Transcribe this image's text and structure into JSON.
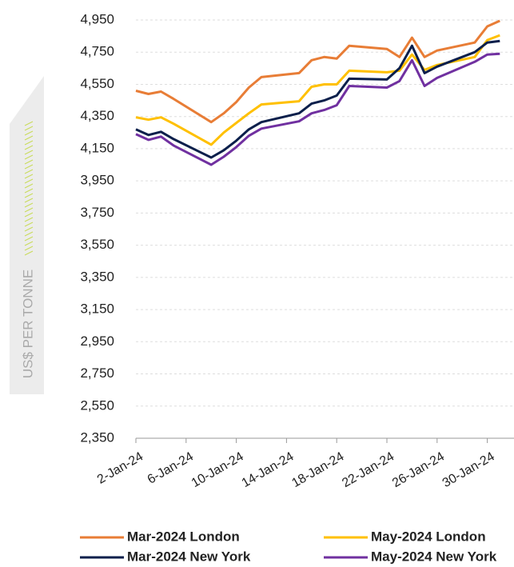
{
  "chart_data": {
    "type": "line",
    "y_label": "US$ PER TONNE",
    "x": [
      "2024-01-02",
      "2024-01-03",
      "2024-01-04",
      "2024-01-05",
      "2024-01-08",
      "2024-01-09",
      "2024-01-10",
      "2024-01-11",
      "2024-01-12",
      "2024-01-15",
      "2024-01-16",
      "2024-01-17",
      "2024-01-18",
      "2024-01-19",
      "2024-01-22",
      "2024-01-23",
      "2024-01-24",
      "2024-01-25",
      "2024-01-26",
      "2024-01-29",
      "2024-01-30",
      "2024-01-31"
    ],
    "series": [
      {
        "name": "Mar-2024 London",
        "color": "#E87D36",
        "values": [
          4510,
          4490,
          4505,
          4460,
          4315,
          4370,
          4440,
          4530,
          4595,
          4620,
          4700,
          4720,
          4710,
          4790,
          4770,
          4720,
          4840,
          4720,
          4760,
          4810,
          4910,
          4945
        ]
      },
      {
        "name": "May-2024 London",
        "color": "#FFC000",
        "values": [
          4345,
          4330,
          4345,
          4305,
          4175,
          4250,
          4310,
          4370,
          4425,
          4445,
          4535,
          4550,
          4550,
          4635,
          4625,
          4635,
          4735,
          4640,
          4670,
          4720,
          4825,
          4855
        ]
      },
      {
        "name": "Mar-2024 New York",
        "color": "#0B1F4B",
        "values": [
          4270,
          4235,
          4255,
          4210,
          4095,
          4140,
          4200,
          4270,
          4315,
          4370,
          4430,
          4450,
          4480,
          4585,
          4580,
          4650,
          4790,
          4620,
          4660,
          4750,
          4810,
          4820
        ]
      },
      {
        "name": "May-2024 New York",
        "color": "#7030A0",
        "values": [
          4240,
          4205,
          4225,
          4170,
          4050,
          4100,
          4160,
          4230,
          4275,
          4320,
          4370,
          4390,
          4420,
          4540,
          4530,
          4570,
          4700,
          4540,
          4590,
          4690,
          4735,
          4740
        ]
      }
    ],
    "xlim": [
      "2024-01-02",
      "2024-02-01"
    ],
    "xticks": [
      {
        "value": "2024-01-02",
        "label": "2-Jan-24"
      },
      {
        "value": "2024-01-06",
        "label": "6-Jan-24"
      },
      {
        "value": "2024-01-10",
        "label": "10-Jan-24"
      },
      {
        "value": "2024-01-14",
        "label": "14-Jan-24"
      },
      {
        "value": "2024-01-18",
        "label": "18-Jan-24"
      },
      {
        "value": "2024-01-22",
        "label": "22-Jan-24"
      },
      {
        "value": "2024-01-26",
        "label": "26-Jan-24"
      },
      {
        "value": "2024-01-30",
        "label": "30-Jan-24"
      }
    ],
    "ylim": [
      2350,
      4950
    ],
    "yticks": [
      {
        "value": 2350,
        "label": "2,350"
      },
      {
        "value": 2550,
        "label": "2,550"
      },
      {
        "value": 2750,
        "label": "2,750"
      },
      {
        "value": 2950,
        "label": "2,950"
      },
      {
        "value": 3150,
        "label": "3,150"
      },
      {
        "value": 3350,
        "label": "3,350"
      },
      {
        "value": 3550,
        "label": "3,550"
      },
      {
        "value": 3750,
        "label": "3,750"
      },
      {
        "value": 3950,
        "label": "3,950"
      },
      {
        "value": 4150,
        "label": "4,150"
      },
      {
        "value": 4350,
        "label": "4,350"
      },
      {
        "value": 4550,
        "label": "4,550"
      },
      {
        "value": 4750,
        "label": "4,750"
      },
      {
        "value": 4950,
        "label": "4,950"
      }
    ],
    "grid": true
  }
}
